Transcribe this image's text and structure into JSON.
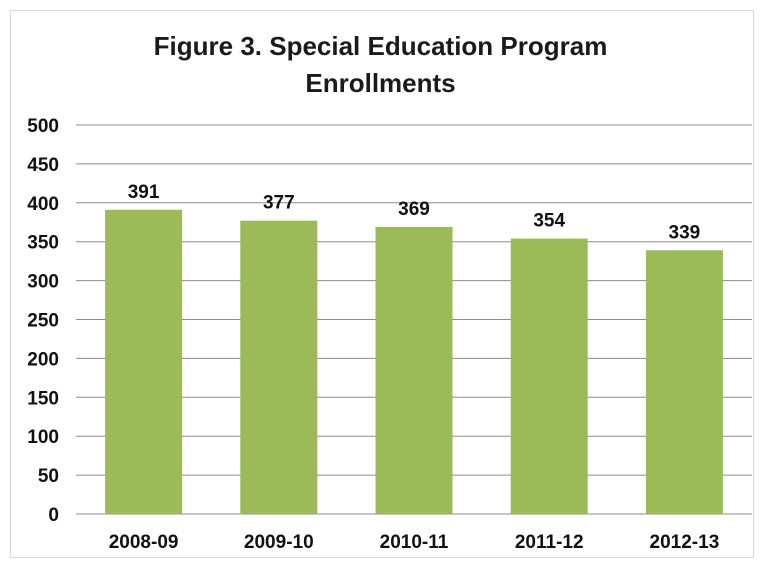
{
  "chart_data": {
    "type": "bar",
    "title_lines": [
      "Figure 3. Special Education Program",
      "Enrollments"
    ],
    "categories": [
      "2008-09",
      "2009-10",
      "2010-11",
      "2011-12",
      "2012-13"
    ],
    "values": [
      391,
      377,
      369,
      354,
      339
    ],
    "data_labels": [
      "391",
      "377",
      "369",
      "354",
      "339"
    ],
    "ylim": [
      0,
      500
    ],
    "yticks": [
      "0",
      "50",
      "100",
      "150",
      "200",
      "250",
      "300",
      "350",
      "400",
      "450",
      "500"
    ],
    "xlabel": "",
    "ylabel": "",
    "grid": true,
    "legend": "none",
    "bar_color": "#9bbb59",
    "grid_color": "#8c8c8c"
  }
}
